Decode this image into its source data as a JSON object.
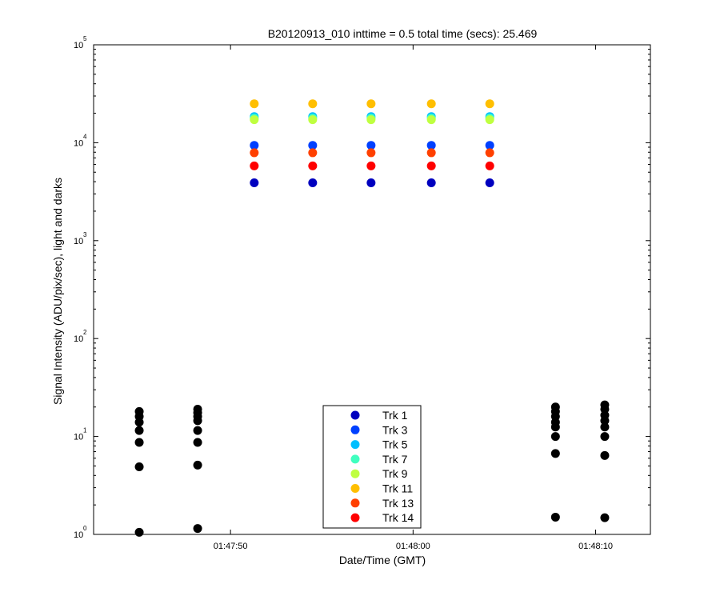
{
  "chart_data": {
    "type": "scatter",
    "title": "B20120913_010 inttime = 0.5 total time (secs): 25.469",
    "xlabel": "Date/Time (GMT)",
    "ylabel": "Signal Intensity (ADU/pix/sec), light and darks",
    "yscale": "log",
    "ylim": [
      1,
      100000
    ],
    "xlim": [
      "01:47:42.5",
      "01:48:13.0"
    ],
    "x_ticks": [
      "01:47:50",
      "01:48:00",
      "01:48:10"
    ],
    "y_ticks": [
      {
        "base": "10",
        "exp": "0"
      },
      {
        "base": "10",
        "exp": "1"
      },
      {
        "base": "10",
        "exp": "2"
      },
      {
        "base": "10",
        "exp": "3"
      },
      {
        "base": "10",
        "exp": "4"
      },
      {
        "base": "10",
        "exp": "5"
      }
    ],
    "grid": false,
    "legend_position": "bottom-center",
    "series": [
      {
        "name": "Trk 1",
        "color": "#0000bf",
        "x": [
          "01:47:51.3",
          "01:47:54.5",
          "01:47:57.7",
          "01:48:01.0",
          "01:48:04.2"
        ],
        "y": [
          3900,
          3900,
          3900,
          3900,
          3900
        ]
      },
      {
        "name": "Trk 3",
        "color": "#0040ff",
        "x": [
          "01:47:51.3",
          "01:47:54.5",
          "01:47:57.7",
          "01:48:01.0",
          "01:48:04.2"
        ],
        "y": [
          9400,
          9400,
          9400,
          9400,
          9400
        ]
      },
      {
        "name": "Trk 5",
        "color": "#00bfff",
        "x": [
          "01:47:51.3",
          "01:47:54.5",
          "01:47:57.7",
          "01:48:01.0",
          "01:48:04.2"
        ],
        "y": [
          18500,
          18500,
          18500,
          18500,
          18500
        ]
      },
      {
        "name": "Trk 7",
        "color": "#40ffbf",
        "x": [
          "01:47:51.3",
          "01:47:54.5",
          "01:47:57.7",
          "01:48:01.0",
          "01:48:04.2"
        ],
        "y": [
          17800,
          17800,
          17800,
          17800,
          17800
        ]
      },
      {
        "name": "Trk 9",
        "color": "#bfff40",
        "x": [
          "01:47:51.3",
          "01:47:54.5",
          "01:47:57.7",
          "01:48:01.0",
          "01:48:04.2"
        ],
        "y": [
          17200,
          17200,
          17200,
          17200,
          17200
        ]
      },
      {
        "name": "Trk 11",
        "color": "#ffbf00",
        "x": [
          "01:47:51.3",
          "01:47:54.5",
          "01:47:57.7",
          "01:48:01.0",
          "01:48:04.2"
        ],
        "y": [
          25000,
          25000,
          25000,
          25000,
          25000
        ]
      },
      {
        "name": "Trk 13",
        "color": "#ff4000",
        "x": [
          "01:47:51.3",
          "01:47:54.5",
          "01:47:57.7",
          "01:48:01.0",
          "01:48:04.2"
        ],
        "y": [
          7900,
          7900,
          7900,
          7900,
          7900
        ]
      },
      {
        "name": "Trk 14",
        "color": "#ff0000",
        "x": [
          "01:47:51.3",
          "01:47:54.5",
          "01:47:57.7",
          "01:48:01.0",
          "01:48:04.2"
        ],
        "y": [
          5800,
          5800,
          5800,
          5800,
          5800
        ]
      }
    ],
    "darks": {
      "color": "#000000",
      "x": [
        "01:47:45.0",
        "01:47:48.2",
        "01:48:07.8",
        "01:48:10.5"
      ],
      "y": [
        [
          18,
          16,
          14,
          11.5,
          8.7,
          4.9,
          1.05
        ],
        [
          19,
          17.5,
          16,
          14.5,
          11.5,
          8.7,
          5.1,
          1.15
        ],
        [
          20,
          18,
          16,
          14,
          12.5,
          10,
          6.7,
          1.5
        ],
        [
          21,
          19,
          16.5,
          14.5,
          12.5,
          10,
          6.4,
          1.48
        ]
      ]
    }
  }
}
